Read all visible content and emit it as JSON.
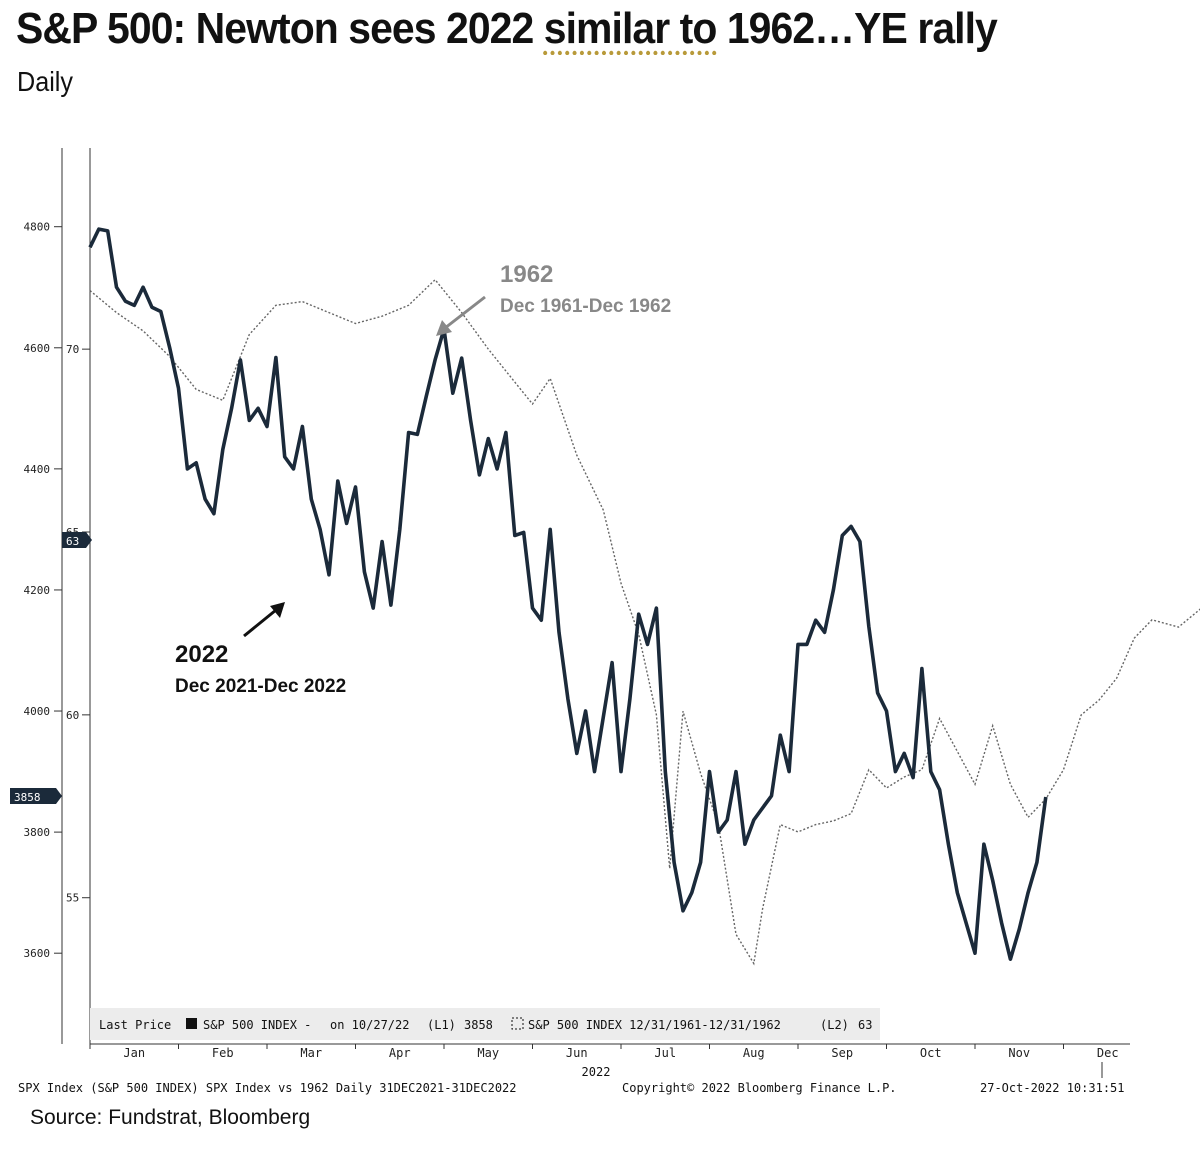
{
  "header": {
    "title_prefix": "S&P 500: Newton sees 2022 ",
    "title_underlined": "similar to",
    "title_suffix": " 1962…YE rally",
    "subtitle": "Daily"
  },
  "chart_data": {
    "type": "line",
    "title": "S&P 500: Newton sees 2022 similar to 1962…YE rally",
    "subtitle": "Daily",
    "x_months": [
      "Jan",
      "Feb",
      "Mar",
      "Apr",
      "May",
      "Jun",
      "Jul",
      "Aug",
      "Sep",
      "Oct",
      "Nov",
      "Dec"
    ],
    "x_year_label": "2022",
    "left_axis": {
      "ticks": [
        3600,
        3800,
        4000,
        4200,
        4400,
        4600,
        4800
      ],
      "range": [
        3450,
        4930
      ]
    },
    "right_axis": {
      "ticks": [
        55,
        60,
        65,
        70
      ],
      "range": [
        51.0,
        75.5
      ]
    },
    "current_markers": {
      "left": "3858",
      "right": "63"
    },
    "series": [
      {
        "name": "S&P 500 INDEX (2022)",
        "axis": "L1",
        "style": "solid",
        "annotation_title": "2022",
        "annotation_sub": "Dec 2021-Dec 2022",
        "points": [
          [
            0.0,
            4766
          ],
          [
            0.1,
            4796
          ],
          [
            0.2,
            4793
          ],
          [
            0.3,
            4700
          ],
          [
            0.4,
            4677
          ],
          [
            0.5,
            4670
          ],
          [
            0.6,
            4700
          ],
          [
            0.7,
            4667
          ],
          [
            0.8,
            4660
          ],
          [
            0.9,
            4600
          ],
          [
            1.0,
            4533
          ],
          [
            1.1,
            4400
          ],
          [
            1.2,
            4410
          ],
          [
            1.3,
            4350
          ],
          [
            1.4,
            4326
          ],
          [
            1.5,
            4432
          ],
          [
            1.6,
            4500
          ],
          [
            1.7,
            4580
          ],
          [
            1.8,
            4480
          ],
          [
            1.9,
            4500
          ],
          [
            2.0,
            4470
          ],
          [
            2.1,
            4584
          ],
          [
            2.2,
            4420
          ],
          [
            2.3,
            4400
          ],
          [
            2.4,
            4470
          ],
          [
            2.5,
            4350
          ],
          [
            2.6,
            4300
          ],
          [
            2.7,
            4225
          ],
          [
            2.8,
            4380
          ],
          [
            2.9,
            4310
          ],
          [
            3.0,
            4370
          ],
          [
            3.1,
            4230
          ],
          [
            3.2,
            4170
          ],
          [
            3.3,
            4280
          ],
          [
            3.4,
            4175
          ],
          [
            3.5,
            4300
          ],
          [
            3.6,
            4460
          ],
          [
            3.7,
            4457
          ],
          [
            3.8,
            4520
          ],
          [
            3.9,
            4580
          ],
          [
            4.0,
            4631
          ],
          [
            4.1,
            4525
          ],
          [
            4.2,
            4583
          ],
          [
            4.3,
            4480
          ],
          [
            4.4,
            4390
          ],
          [
            4.5,
            4450
          ],
          [
            4.6,
            4400
          ],
          [
            4.7,
            4460
          ],
          [
            4.8,
            4290
          ],
          [
            4.9,
            4295
          ],
          [
            5.0,
            4170
          ],
          [
            5.1,
            4150
          ],
          [
            5.2,
            4300
          ],
          [
            5.3,
            4130
          ],
          [
            5.4,
            4020
          ],
          [
            5.5,
            3930
          ],
          [
            5.6,
            4000
          ],
          [
            5.7,
            3900
          ],
          [
            5.8,
            3990
          ],
          [
            5.9,
            4080
          ],
          [
            6.0,
            3900
          ],
          [
            6.1,
            4020
          ],
          [
            6.2,
            4160
          ],
          [
            6.3,
            4110
          ],
          [
            6.4,
            4170
          ],
          [
            6.5,
            3900
          ],
          [
            6.6,
            3750
          ],
          [
            6.7,
            3670
          ],
          [
            6.8,
            3700
          ],
          [
            6.9,
            3750
          ],
          [
            7.0,
            3900
          ],
          [
            7.1,
            3800
          ],
          [
            7.2,
            3820
          ],
          [
            7.3,
            3900
          ],
          [
            7.4,
            3780
          ],
          [
            7.5,
            3820
          ],
          [
            7.6,
            3840
          ],
          [
            7.7,
            3860
          ],
          [
            7.8,
            3960
          ],
          [
            7.9,
            3900
          ],
          [
            8.0,
            4110
          ],
          [
            8.1,
            4110
          ],
          [
            8.2,
            4150
          ],
          [
            8.3,
            4130
          ],
          [
            8.4,
            4200
          ],
          [
            8.5,
            4290
          ],
          [
            8.6,
            4305
          ],
          [
            8.7,
            4280
          ],
          [
            8.8,
            4140
          ],
          [
            8.9,
            4030
          ],
          [
            9.0,
            4000
          ],
          [
            9.1,
            3900
          ],
          [
            9.2,
            3930
          ],
          [
            9.3,
            3890
          ],
          [
            9.4,
            4070
          ],
          [
            9.5,
            3900
          ],
          [
            9.6,
            3870
          ],
          [
            9.7,
            3780
          ],
          [
            9.8,
            3700
          ],
          [
            9.9,
            3650
          ],
          [
            10.0,
            3600
          ],
          [
            10.1,
            3780
          ],
          [
            10.2,
            3720
          ],
          [
            10.3,
            3650
          ],
          [
            10.4,
            3590
          ],
          [
            10.5,
            3640
          ],
          [
            10.6,
            3700
          ],
          [
            10.7,
            3750
          ],
          [
            10.8,
            3858
          ]
        ]
      },
      {
        "name": "S&P 500 INDEX 12/31/1961-12/31/1962",
        "axis": "L2",
        "style": "dotted",
        "annotation_title": "1962",
        "annotation_sub": "Dec 1961-Dec 1962",
        "points": [
          [
            0.0,
            71.6
          ],
          [
            0.3,
            71.0
          ],
          [
            0.6,
            70.5
          ],
          [
            0.9,
            69.8
          ],
          [
            1.2,
            68.9
          ],
          [
            1.5,
            68.6
          ],
          [
            1.8,
            70.4
          ],
          [
            2.1,
            71.2
          ],
          [
            2.4,
            71.3
          ],
          [
            2.7,
            71.0
          ],
          [
            3.0,
            70.7
          ],
          [
            3.3,
            70.9
          ],
          [
            3.6,
            71.2
          ],
          [
            3.9,
            71.9
          ],
          [
            4.2,
            71.0
          ],
          [
            4.5,
            70.0
          ],
          [
            4.8,
            69.1
          ],
          [
            5.0,
            68.5
          ],
          [
            5.2,
            69.2
          ],
          [
            5.5,
            67.1
          ],
          [
            5.8,
            65.6
          ],
          [
            6.0,
            63.6
          ],
          [
            6.2,
            62.2
          ],
          [
            6.4,
            60.0
          ],
          [
            6.55,
            55.8
          ],
          [
            6.7,
            60.1
          ],
          [
            6.9,
            58.4
          ],
          [
            7.1,
            57.0
          ],
          [
            7.3,
            54.0
          ],
          [
            7.5,
            53.2
          ],
          [
            7.6,
            54.7
          ],
          [
            7.8,
            57.0
          ],
          [
            8.0,
            56.8
          ],
          [
            8.2,
            57.0
          ],
          [
            8.4,
            57.1
          ],
          [
            8.6,
            57.3
          ],
          [
            8.8,
            58.5
          ],
          [
            9.0,
            58.0
          ],
          [
            9.2,
            58.3
          ],
          [
            9.4,
            58.5
          ],
          [
            9.6,
            59.9
          ],
          [
            9.8,
            59.0
          ],
          [
            10.0,
            58.1
          ],
          [
            10.2,
            59.7
          ],
          [
            10.4,
            58.1
          ],
          [
            10.6,
            57.2
          ],
          [
            10.8,
            57.7
          ],
          [
            11.0,
            58.5
          ],
          [
            11.2,
            60.0
          ],
          [
            11.4,
            60.4
          ],
          [
            11.6,
            61.0
          ],
          [
            11.8,
            62.1
          ],
          [
            12.0,
            62.6
          ],
          [
            12.3,
            62.4
          ],
          [
            12.6,
            63.0
          ]
        ]
      }
    ],
    "legend": {
      "last_price": "Last Price",
      "s1_label": "S&P 500 INDEX -",
      "s1_on": "on 10/27/22",
      "s1_axis": "(L1)",
      "s1_value": "3858",
      "s2_label": "S&P 500 INDEX 12/31/1961-12/31/1962",
      "s2_axis": "(L2)",
      "s2_value": "63"
    }
  },
  "footer": {
    "left": "SPX Index (S&P 500 INDEX) SPX Index vs 1962  Daily 31DEC2021-31DEC2022",
    "center": "Copyright© 2022 Bloomberg Finance L.P.",
    "right": "27-Oct-2022 10:31:51",
    "source": "Source: Fundstrat, Bloomberg"
  }
}
